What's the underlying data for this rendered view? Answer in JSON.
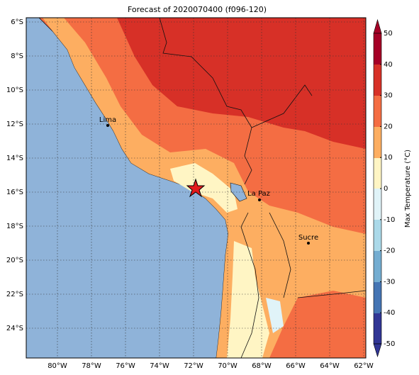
{
  "title": "Forecast of 2020070400 (f096-120)",
  "x_ticks": [
    "80°W",
    "78°W",
    "76°W",
    "74°W",
    "72°W",
    "70°W",
    "68°W",
    "66°W",
    "64°W",
    "62°W"
  ],
  "y_ticks": [
    "6°S",
    "8°S",
    "10°S",
    "12°S",
    "14°S",
    "16°S",
    "18°S",
    "20°S",
    "22°S",
    "24°S"
  ],
  "colorbar": {
    "label": "Max Temperature (°C)",
    "ticks": [
      50,
      40,
      30,
      20,
      10,
      0,
      -10,
      -20,
      -30,
      -40,
      -50
    ]
  },
  "cities": [
    "Lima",
    "La Paz",
    "Sucre"
  ]
}
